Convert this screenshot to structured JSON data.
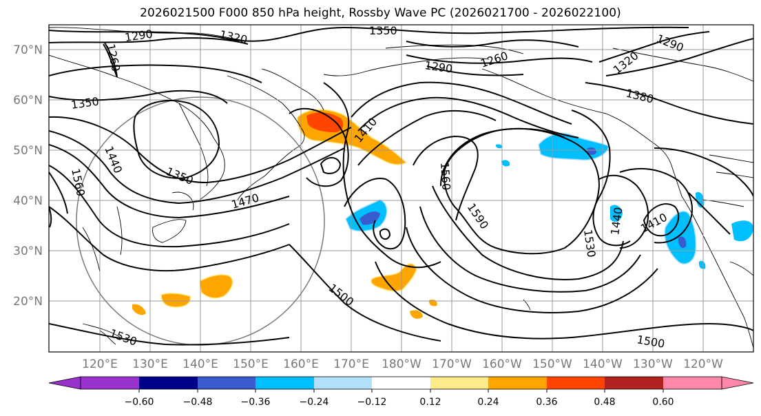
{
  "title": "2026021500 F000 850 hPa height, Rossby Wave PC (2026021700 - 2026022100)",
  "lat_labels": [
    "70°N",
    "60°N",
    "50°N",
    "40°N",
    "30°N",
    "20°N"
  ],
  "lon_labels": [
    "120°E",
    "130°E",
    "140°E",
    "150°E",
    "160°E",
    "170°E",
    "180°W",
    "170°W",
    "160°W",
    "150°W",
    "140°W",
    "130°W",
    "120°W"
  ],
  "contour_labels": [
    "1350",
    "1320",
    "1290",
    "1260",
    "1290",
    "1260",
    "1290",
    "1320",
    "1380",
    "1350",
    "1440",
    "1560",
    "1350",
    "1410",
    "1560",
    "1470",
    "1590",
    "1530",
    "1440",
    "1410",
    "1500",
    "1530",
    "1500"
  ],
  "colorbar": {
    "ticks": [
      "−0.60",
      "−0.48",
      "−0.36",
      "−0.24",
      "−0.12",
      "0.12",
      "0.24",
      "0.36",
      "0.48",
      "0.60"
    ],
    "colors": [
      "#9932cc",
      "#00008b",
      "#3a5bd0",
      "#00bfff",
      "#b0e0fa",
      "#ffffff",
      "#ffea8a",
      "#ffa500",
      "#ff4500",
      "#b22222",
      "#ff88aa",
      "#ff88aa"
    ]
  },
  "colors": {
    "orange": "#ffa500",
    "red": "#ff4500",
    "light_yellow": "#ffea8a",
    "cyan": "#00bfff",
    "light_blue": "#b0e0fa",
    "royal": "#3a5bd0",
    "grid": "#999999"
  }
}
